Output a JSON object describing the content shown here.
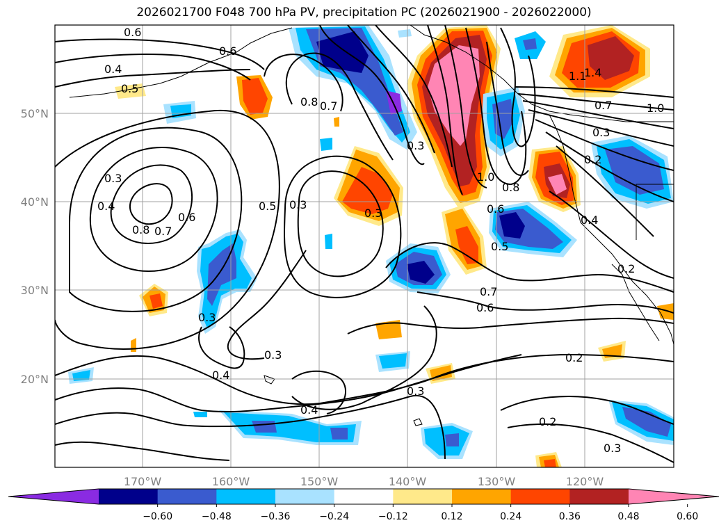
{
  "title": "2026021700 F048 700 hPa PV, precipitation PC (2026021900 - 2026022000)",
  "map": {
    "lon_labels": [
      "170°W",
      "160°W",
      "150°W",
      "140°W",
      "130°W",
      "120°W"
    ],
    "lat_labels": [
      "50°N",
      "40°N",
      "30°N",
      "20°N"
    ],
    "contour_labels": [
      {
        "text": "0.6"
      },
      {
        "text": "0.6"
      },
      {
        "text": "0.4"
      },
      {
        "text": "0.5"
      },
      {
        "text": "0.8"
      },
      {
        "text": "0.7"
      },
      {
        "text": "0.3"
      },
      {
        "text": "0.4"
      },
      {
        "text": "0.8"
      },
      {
        "text": "0.7"
      },
      {
        "text": "0.6"
      },
      {
        "text": "0.5"
      },
      {
        "text": "0.3"
      },
      {
        "text": "0.3"
      },
      {
        "text": "0.3"
      },
      {
        "text": "1.0"
      },
      {
        "text": "0.8"
      },
      {
        "text": "0.6"
      },
      {
        "text": "0.5"
      },
      {
        "text": "0.7"
      },
      {
        "text": "0.6"
      },
      {
        "text": "0.7"
      },
      {
        "text": "1.0"
      },
      {
        "text": "0.3"
      },
      {
        "text": "0.2"
      },
      {
        "text": "0.4"
      },
      {
        "text": "0.2"
      },
      {
        "text": "0.3"
      },
      {
        "text": "0.4"
      },
      {
        "text": "0.3"
      },
      {
        "text": "0.4"
      },
      {
        "text": "0.3"
      },
      {
        "text": "0.2"
      },
      {
        "text": "0.2"
      },
      {
        "text": "0.3"
      },
      {
        "text": "1.4"
      },
      {
        "text": "1.1"
      }
    ]
  },
  "colorbar": {
    "colors": [
      "#8a2be2",
      "#00008b",
      "#3a5bcf",
      "#00bfff",
      "#a9e2ff",
      "#ffffff",
      "#ffe98a",
      "#ffa500",
      "#ff4500",
      "#b22222",
      "#ff85b4"
    ],
    "tick_labels": [
      "−0.60",
      "−0.48",
      "−0.36",
      "−0.24",
      "−0.12",
      "0.12",
      "0.24",
      "0.36",
      "0.48",
      "0.60"
    ]
  }
}
